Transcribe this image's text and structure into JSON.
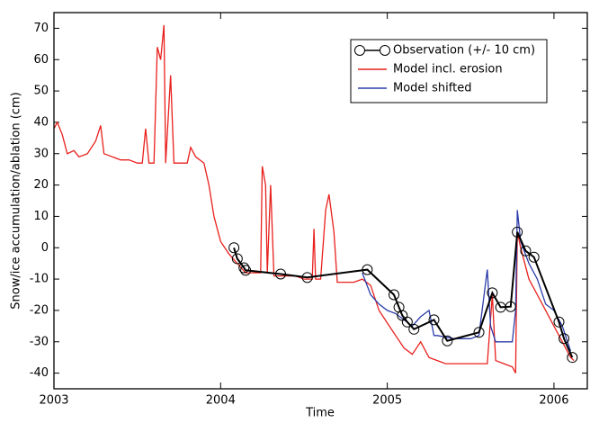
{
  "chart_data": {
    "type": "line",
    "x_label": "Time",
    "y_label": "Snow/ice accumulation/ablation (cm)",
    "xlim": [
      2003,
      2006.2
    ],
    "ylim": [
      -45,
      75
    ],
    "xticks": [
      2003,
      2004,
      2005,
      2006
    ],
    "yticks": [
      -40,
      -30,
      -20,
      -10,
      0,
      10,
      20,
      30,
      40,
      50,
      60,
      70
    ],
    "legend": "upper right",
    "series": [
      {
        "name": "Observation (+/- 10 cm)",
        "color": "#000000",
        "marker": "circle",
        "x": [
          2004.08,
          2004.1,
          2004.14,
          2004.15,
          2004.36,
          2004.52,
          2004.88,
          2005.04,
          2005.07,
          2005.09,
          2005.12,
          2005.16,
          2005.28,
          2005.36,
          2005.55,
          2005.63,
          2005.68,
          2005.74,
          2005.78,
          2005.83,
          2005.88,
          2006.03,
          2006.06,
          2006.11
        ],
        "values": [
          0,
          -3.5,
          -6.4,
          -7.2,
          -8.4,
          -9.5,
          -7,
          -15,
          -19,
          -21.6,
          -23.7,
          -26,
          -23,
          -29.7,
          -27,
          -14.4,
          -19,
          -18.8,
          5,
          -1,
          -3,
          -23.7,
          -29,
          -35
        ]
      },
      {
        "name": "Model incl. erosion",
        "color": "#e8201c",
        "x": [
          2003.0,
          2003.02,
          2003.05,
          2003.08,
          2003.12,
          2003.15,
          2003.2,
          2003.25,
          2003.28,
          2003.3,
          2003.35,
          2003.4,
          2003.45,
          2003.5,
          2003.53,
          2003.55,
          2003.57,
          2003.6,
          2003.62,
          2003.64,
          2003.66,
          2003.67,
          2003.7,
          2003.72,
          2003.75,
          2003.8,
          2003.82,
          2003.85,
          2003.9,
          2003.93,
          2003.96,
          2004.0,
          2004.05,
          2004.1,
          2004.15,
          2004.2,
          2004.24,
          2004.25,
          2004.27,
          2004.28,
          2004.3,
          2004.32,
          2004.4,
          2004.45,
          2004.5,
          2004.55,
          2004.56,
          2004.57,
          2004.6,
          2004.63,
          2004.65,
          2004.68,
          2004.7,
          2004.8,
          2004.85,
          2004.9,
          2004.95,
          2005.0,
          2005.05,
          2005.1,
          2005.15,
          2005.2,
          2005.25,
          2005.3,
          2005.35,
          2005.45,
          2005.55,
          2005.6,
          2005.63,
          2005.65,
          2005.7,
          2005.75,
          2005.77,
          2005.78,
          2005.8,
          2005.85,
          2005.9,
          2005.95,
          2006.0,
          2006.05,
          2006.1,
          2006.12
        ],
        "values": [
          38,
          40,
          36,
          30,
          31,
          29,
          30,
          34,
          39,
          30,
          29,
          28,
          28,
          27,
          27,
          38,
          27,
          27,
          64,
          60,
          71,
          27,
          55,
          27,
          27,
          27,
          32,
          29,
          27,
          20,
          10,
          2,
          -2,
          -5,
          -8,
          -8,
          -8,
          26,
          20,
          -8,
          20,
          -9,
          -9,
          -9,
          -10,
          -10,
          6,
          -10,
          -10,
          12,
          17,
          5,
          -11,
          -11,
          -10,
          -12,
          -20,
          -24,
          -28,
          -32,
          -34,
          -30,
          -35,
          -36,
          -37,
          -37,
          -37,
          -37,
          -15,
          -36,
          -37,
          -38,
          -40,
          5,
          0,
          -10,
          -15,
          -20,
          -25,
          -30,
          -35,
          -36
        ]
      },
      {
        "name": "Model shifted",
        "color": "#2b3ca8",
        "x": [
          2004.85,
          2004.9,
          2004.95,
          2005.0,
          2005.05,
          2005.1,
          2005.15,
          2005.2,
          2005.25,
          2005.28,
          2005.3,
          2005.4,
          2005.5,
          2005.55,
          2005.6,
          2005.62,
          2005.65,
          2005.7,
          2005.75,
          2005.77,
          2005.78,
          2005.8,
          2005.85,
          2005.9,
          2005.95,
          2006.0,
          2006.05,
          2006.1
        ],
        "values": [
          -8,
          -15,
          -18,
          -20,
          -21,
          -23,
          -25,
          -22,
          -20,
          -28,
          -28,
          -29,
          -29,
          -28,
          -7,
          -25,
          -30,
          -30,
          -30,
          -20,
          12,
          2,
          -5,
          -10,
          -18,
          -20,
          -25,
          -33
        ]
      }
    ]
  }
}
